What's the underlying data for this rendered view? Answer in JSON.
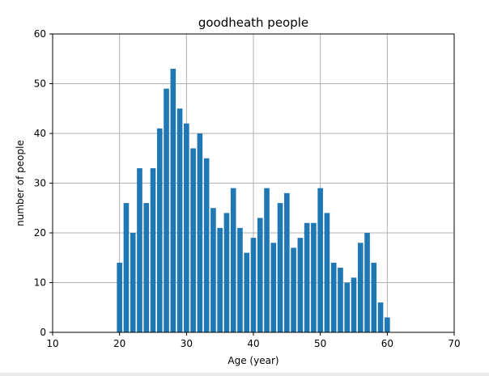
{
  "chart_data": {
    "type": "bar",
    "title": "goodheath people",
    "xlabel": "Age (year)",
    "ylabel": "number of people",
    "xlim": [
      10,
      70
    ],
    "ylim": [
      0,
      60
    ],
    "xticks": [
      10,
      20,
      30,
      40,
      50,
      60,
      70
    ],
    "yticks": [
      0,
      10,
      20,
      30,
      40,
      50,
      60
    ],
    "grid": true,
    "bar_color": "#1f77b4",
    "x": [
      20,
      21,
      22,
      23,
      24,
      25,
      26,
      27,
      28,
      29,
      30,
      31,
      32,
      33,
      34,
      35,
      36,
      37,
      38,
      39,
      40,
      41,
      42,
      43,
      44,
      45,
      46,
      47,
      48,
      49,
      50,
      51,
      52,
      53,
      54,
      55,
      56,
      57,
      58,
      59,
      60
    ],
    "values": [
      14,
      26,
      20,
      33,
      26,
      33,
      41,
      49,
      53,
      45,
      42,
      37,
      40,
      35,
      25,
      21,
      24,
      29,
      21,
      16,
      19,
      23,
      29,
      18,
      26,
      28,
      17,
      19,
      22,
      22,
      29,
      24,
      14,
      13,
      10,
      11,
      18,
      20,
      14,
      6,
      3
    ]
  }
}
